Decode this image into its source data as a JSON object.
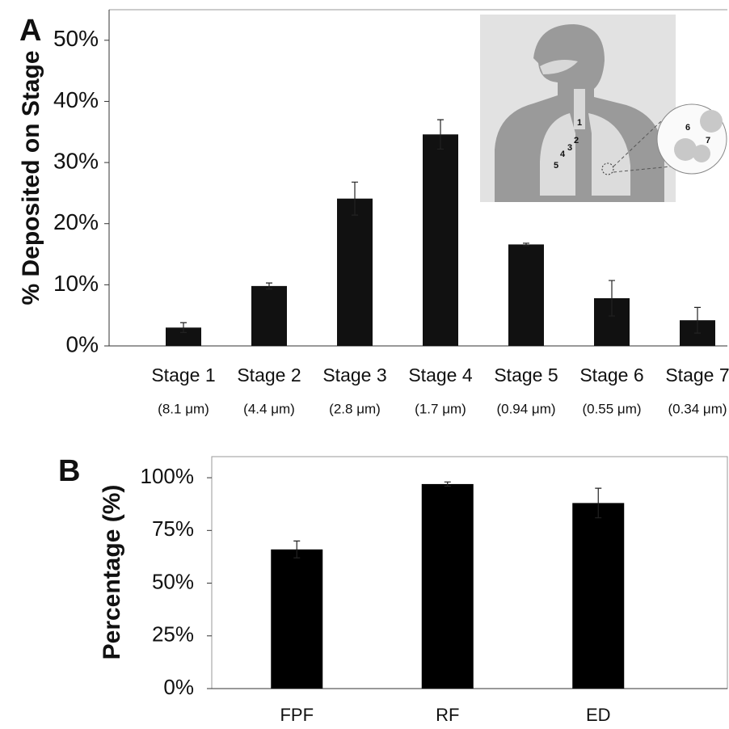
{
  "chart_data": [
    {
      "type": "bar",
      "label": "A",
      "y_label": "% Deposited on Stage",
      "categories": [
        "Stage 1",
        "Stage 2",
        "Stage 3",
        "Stage 4",
        "Stage 5",
        "Stage 6",
        "Stage 7"
      ],
      "sublabels": [
        "(8.1 μm)",
        "(4.4 μm)",
        "(2.8 μm)",
        "(1.7 μm)",
        "(0.94 μm)",
        "(0.55 μm)",
        "(0.34 μm)"
      ],
      "values": [
        3.0,
        9.8,
        24.1,
        34.6,
        16.6,
        7.8,
        4.2
      ],
      "errors": [
        0.8,
        0.5,
        2.7,
        2.4,
        0.2,
        2.9,
        2.1
      ],
      "color": "#111111",
      "ylim": [
        0,
        55
      ],
      "yticks": [
        {
          "value": 0,
          "label": "0%"
        },
        {
          "value": 10,
          "label": "10%"
        },
        {
          "value": 20,
          "label": "20%"
        },
        {
          "value": 30,
          "label": "30%"
        },
        {
          "value": 40,
          "label": "40%"
        },
        {
          "value": 50,
          "label": "50%"
        }
      ],
      "inset_labels": [
        "1",
        "2",
        "3",
        "4",
        "5",
        "6",
        "7"
      ]
    },
    {
      "type": "bar",
      "label": "B",
      "y_label": "Percentage (%)",
      "categories": [
        "FPF",
        "RF",
        "ED"
      ],
      "values": [
        66,
        97,
        88
      ],
      "errors": [
        4,
        1,
        7
      ],
      "color": "#000000",
      "ylim": [
        0,
        110
      ],
      "yticks": [
        {
          "value": 0,
          "label": "0%"
        },
        {
          "value": 25,
          "label": "25%"
        },
        {
          "value": 50,
          "label": "50%"
        },
        {
          "value": 75,
          "label": "75%"
        },
        {
          "value": 100,
          "label": "100%"
        }
      ]
    }
  ]
}
